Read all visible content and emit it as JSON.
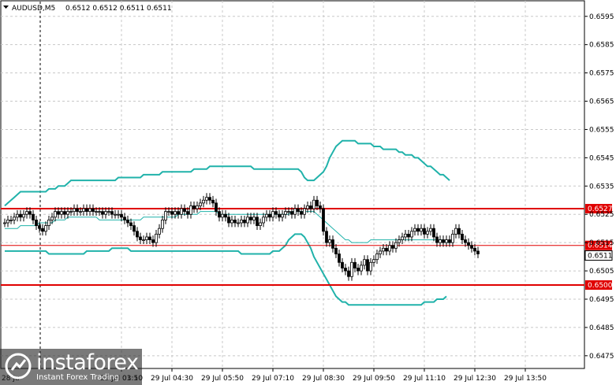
{
  "header": {
    "symbol": "AUDUSD,M5",
    "ohlc": "0.6512 0.6512 0.6511 0.6511"
  },
  "logo": {
    "brand": "instaforex",
    "tagline": "Instant Forex Trading"
  },
  "colors": {
    "bands": "#20b2aa",
    "level_line": "#e00000",
    "candle": "#000000",
    "grid": "#c8c8c8",
    "current_price_box": "#ffffff"
  },
  "chart_data": {
    "type": "candlestick",
    "symbol": "AUDUSD",
    "timeframe": "M5",
    "ylim": [
      0.64705,
      0.66005
    ],
    "y_ticks": [
      "0.6595",
      "0.6585",
      "0.6575",
      "0.6565",
      "0.6555",
      "0.6545",
      "0.6535",
      "0.6525",
      "0.6515",
      "0.6505",
      "0.6495",
      "0.6485",
      "0.6475"
    ],
    "x_ticks": [
      {
        "label": "29 Jul 03:10",
        "index": 37
      },
      {
        "label": "29 Jul 04:30",
        "index": 53
      },
      {
        "label": "29 Jul 05:50",
        "index": 69
      },
      {
        "label": "29 Jul 07:10",
        "index": 85
      },
      {
        "label": "29 Jul 08:30",
        "index": 101
      },
      {
        "label": "29 Jul 09:50",
        "index": 117
      },
      {
        "label": "29 Jul 11:10",
        "index": 133
      },
      {
        "label": "29 Jul 12:30",
        "index": 149
      },
      {
        "label": "29 Jul 13:50",
        "index": 165
      }
    ],
    "partial_x_labels": [
      "28 Ju",
      "01:50"
    ],
    "levels": [
      {
        "price": 0.6527,
        "label": "0.6527",
        "color": "#e00000"
      },
      {
        "price": 0.6514,
        "label": "0.6514",
        "color": "#e00000"
      },
      {
        "price": 0.65,
        "label": "0.6500",
        "color": "#e00000"
      }
    ],
    "current_price": "0.6511",
    "close": [
      0.6522,
      0.6523,
      0.6523,
      0.6524,
      0.6525,
      0.6524,
      0.6525,
      0.6526,
      0.6525,
      0.6523,
      0.6521,
      0.652,
      0.6519,
      0.6521,
      0.6523,
      0.6524,
      0.6526,
      0.6525,
      0.6526,
      0.6525,
      0.6526,
      0.6526,
      0.6527,
      0.6526,
      0.6526,
      0.6527,
      0.6526,
      0.6527,
      0.6526,
      0.6526,
      0.6526,
      0.6525,
      0.6526,
      0.6526,
      0.6525,
      0.6525,
      0.6525,
      0.6524,
      0.6523,
      0.6522,
      0.6521,
      0.6519,
      0.6517,
      0.6516,
      0.6516,
      0.6517,
      0.6516,
      0.6515,
      0.6518,
      0.652,
      0.6523,
      0.6526,
      0.6526,
      0.6525,
      0.6526,
      0.6525,
      0.6527,
      0.6526,
      0.6525,
      0.6528,
      0.6527,
      0.6528,
      0.6529,
      0.653,
      0.6531,
      0.653,
      0.6529,
      0.6526,
      0.6524,
      0.6525,
      0.6524,
      0.6522,
      0.6523,
      0.6522,
      0.6522,
      0.6523,
      0.6522,
      0.6524,
      0.6523,
      0.6524,
      0.6521,
      0.6522,
      0.6524,
      0.6525,
      0.6524,
      0.6526,
      0.6525,
      0.6524,
      0.6525,
      0.6526,
      0.6526,
      0.6525,
      0.6527,
      0.6526,
      0.6525,
      0.6527,
      0.6528,
      0.6527,
      0.653,
      0.6528,
      0.6527,
      0.6519,
      0.6515,
      0.6516,
      0.6513,
      0.6511,
      0.6508,
      0.6506,
      0.6505,
      0.6503,
      0.6508,
      0.6506,
      0.6505,
      0.6507,
      0.6509,
      0.6505,
      0.6508,
      0.6509,
      0.6511,
      0.6512,
      0.6513,
      0.6512,
      0.6514,
      0.6513,
      0.6515,
      0.6516,
      0.6517,
      0.6518,
      0.6517,
      0.6519,
      0.652,
      0.6519,
      0.652,
      0.6518,
      0.6519,
      0.652,
      0.6517,
      0.6515,
      0.6516,
      0.6515,
      0.6516,
      0.6515,
      0.6518,
      0.652,
      0.6518,
      0.6516,
      0.6515,
      0.6514,
      0.6513,
      0.6512,
      0.6511
    ],
    "upper_band": [
      0.6528,
      0.6529,
      0.653,
      0.6531,
      0.6532,
      0.6533,
      0.6533,
      0.6533,
      0.6533,
      0.6533,
      0.6533,
      0.6533,
      0.6533,
      0.6533,
      0.6534,
      0.6534,
      0.6534,
      0.6535,
      0.6535,
      0.6535,
      0.6536,
      0.6537,
      0.6537,
      0.6537,
      0.6537,
      0.6537,
      0.6537,
      0.6537,
      0.6537,
      0.6537,
      0.6537,
      0.6537,
      0.6537,
      0.6537,
      0.6537,
      0.6537,
      0.6538,
      0.6538,
      0.6538,
      0.6538,
      0.6538,
      0.6538,
      0.6538,
      0.6538,
      0.6539,
      0.6539,
      0.6539,
      0.6539,
      0.6539,
      0.6539,
      0.654,
      0.654,
      0.654,
      0.654,
      0.654,
      0.654,
      0.654,
      0.654,
      0.654,
      0.654,
      0.6541,
      0.6541,
      0.6541,
      0.6541,
      0.6541,
      0.6542,
      0.6542,
      0.6542,
      0.6542,
      0.6542,
      0.6542,
      0.6542,
      0.6542,
      0.6542,
      0.6542,
      0.6542,
      0.6542,
      0.6542,
      0.6542,
      0.6541,
      0.6541,
      0.6541,
      0.6541,
      0.6541,
      0.6541,
      0.6541,
      0.6541,
      0.6541,
      0.6541,
      0.6541,
      0.6541,
      0.6541,
      0.6541,
      0.6541,
      0.654,
      0.6538,
      0.6537,
      0.6537,
      0.6537,
      0.6538,
      0.6539,
      0.654,
      0.6542,
      0.6545,
      0.6547,
      0.6549,
      0.655,
      0.6551,
      0.6551,
      0.6551,
      0.6551,
      0.6551,
      0.655,
      0.655,
      0.655,
      0.655,
      0.655,
      0.6549,
      0.6549,
      0.6549,
      0.6548,
      0.6548,
      0.6548,
      0.6548,
      0.6548,
      0.6547,
      0.6547,
      0.6546,
      0.6546,
      0.6546,
      0.6545,
      0.6545,
      0.6544,
      0.6543,
      0.6542,
      0.6542,
      0.6541,
      0.654,
      0.6539,
      0.6539,
      0.6538,
      0.6537
    ],
    "middle_band": [
      0.652,
      0.652,
      0.652,
      0.652,
      0.652,
      0.6521,
      0.6521,
      0.6521,
      0.6521,
      0.6521,
      0.6521,
      0.6522,
      0.6522,
      0.6522,
      0.6522,
      0.6522,
      0.6523,
      0.6523,
      0.6523,
      0.6523,
      0.6524,
      0.6524,
      0.6524,
      0.6524,
      0.6524,
      0.6524,
      0.6524,
      0.6524,
      0.6524,
      0.6524,
      0.6523,
      0.6523,
      0.6523,
      0.6523,
      0.6523,
      0.6523,
      0.6523,
      0.6523,
      0.6523,
      0.6523,
      0.6523,
      0.6523,
      0.6523,
      0.6523,
      0.6524,
      0.6524,
      0.6524,
      0.6524,
      0.6524,
      0.6524,
      0.6524,
      0.6524,
      0.6524,
      0.6524,
      0.6524,
      0.6525,
      0.6525,
      0.6525,
      0.6525,
      0.6525,
      0.6525,
      0.6525,
      0.6526,
      0.6526,
      0.6526,
      0.6526,
      0.6526,
      0.6526,
      0.6525,
      0.6525,
      0.6525,
      0.6525,
      0.6525,
      0.6525,
      0.6525,
      0.6525,
      0.6525,
      0.6525,
      0.6525,
      0.6525,
      0.6525,
      0.6525,
      0.6525,
      0.6525,
      0.6525,
      0.6525,
      0.6525,
      0.6525,
      0.6525,
      0.6525,
      0.6525,
      0.6526,
      0.6526,
      0.6526,
      0.6526,
      0.6526,
      0.6526,
      0.6526,
      0.6526,
      0.6525,
      0.6524,
      0.6523,
      0.6522,
      0.6521,
      0.652,
      0.6519,
      0.6518,
      0.6517,
      0.6516,
      0.6516,
      0.6515,
      0.6515,
      0.6515,
      0.6515,
      0.6515,
      0.6515,
      0.6516,
      0.6516,
      0.6516,
      0.6516,
      0.6516,
      0.6516,
      0.6516,
      0.6516,
      0.6516,
      0.6516,
      0.6516,
      0.6516,
      0.6516,
      0.6516,
      0.6516,
      0.6516,
      0.6516,
      0.6516,
      0.6516,
      0.6516,
      0.6516,
      0.6516,
      0.6516,
      0.6516,
      0.6515,
      0.6515
    ],
    "lower_band": [
      0.6512,
      0.6512,
      0.6512,
      0.6512,
      0.6512,
      0.6512,
      0.6512,
      0.6512,
      0.6512,
      0.6512,
      0.6512,
      0.6512,
      0.6512,
      0.6512,
      0.6511,
      0.6511,
      0.6511,
      0.6511,
      0.6511,
      0.6511,
      0.6511,
      0.6511,
      0.6511,
      0.6511,
      0.6511,
      0.6511,
      0.6512,
      0.6512,
      0.6512,
      0.6512,
      0.6512,
      0.6512,
      0.6512,
      0.6512,
      0.6513,
      0.6513,
      0.6513,
      0.6513,
      0.6513,
      0.6513,
      0.6512,
      0.6512,
      0.6512,
      0.6512,
      0.6512,
      0.6512,
      0.6512,
      0.6512,
      0.6512,
      0.6512,
      0.6512,
      0.6512,
      0.6512,
      0.6512,
      0.6512,
      0.6512,
      0.6512,
      0.6512,
      0.6512,
      0.6512,
      0.6512,
      0.6512,
      0.6512,
      0.6512,
      0.6512,
      0.6512,
      0.6512,
      0.6512,
      0.6512,
      0.6512,
      0.6512,
      0.6512,
      0.6512,
      0.6512,
      0.6512,
      0.6511,
      0.6511,
      0.6511,
      0.6511,
      0.6511,
      0.6511,
      0.6511,
      0.6511,
      0.6511,
      0.6511,
      0.6512,
      0.6512,
      0.6512,
      0.6513,
      0.6514,
      0.6516,
      0.6517,
      0.6518,
      0.6518,
      0.6518,
      0.6517,
      0.6515,
      0.6513,
      0.651,
      0.6508,
      0.6506,
      0.6504,
      0.6502,
      0.65,
      0.6498,
      0.6496,
      0.6495,
      0.6494,
      0.6494,
      0.6493,
      0.6493,
      0.6493,
      0.6493,
      0.6493,
      0.6493,
      0.6493,
      0.6493,
      0.6493,
      0.6493,
      0.6493,
      0.6493,
      0.6493,
      0.6493,
      0.6493,
      0.6493,
      0.6493,
      0.6493,
      0.6493,
      0.6493,
      0.6493,
      0.6493,
      0.6493,
      0.6493,
      0.6494,
      0.6494,
      0.6494,
      0.6494,
      0.6495,
      0.6495,
      0.6495,
      0.6496
    ]
  }
}
